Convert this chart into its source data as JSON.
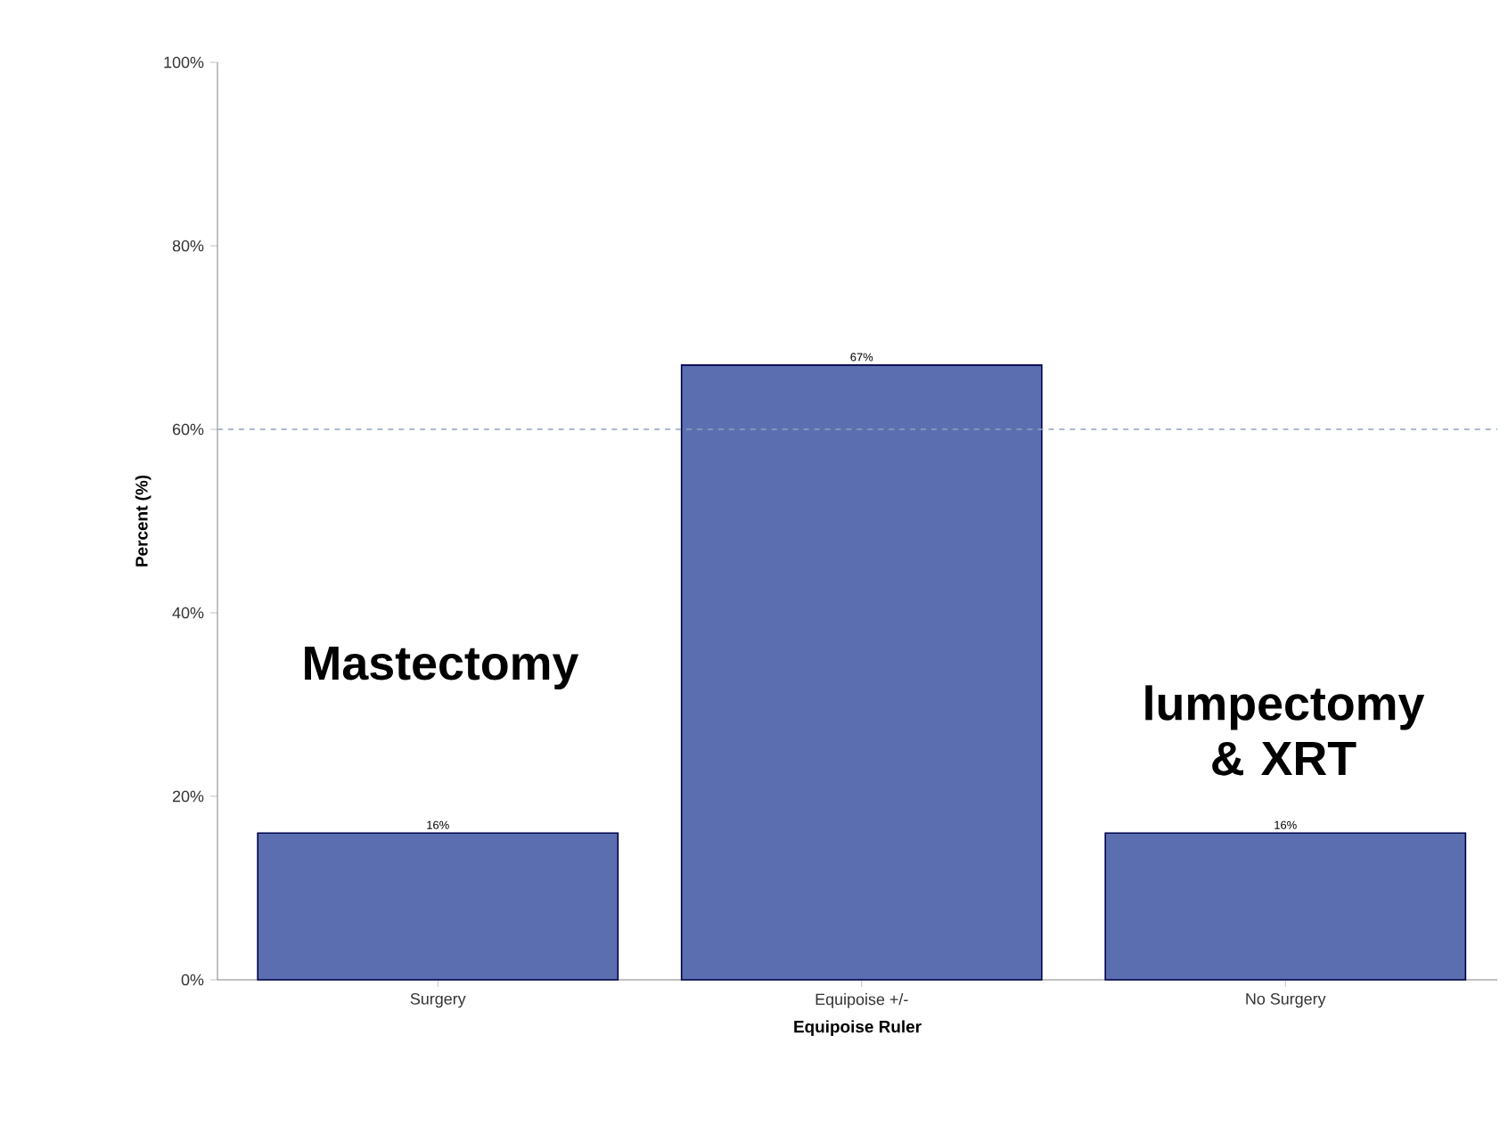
{
  "chart_data": {
    "type": "bar",
    "xlabel": "Equipoise Ruler",
    "ylabel": "Percent (%)",
    "categories": [
      "Surgery",
      "Equipoise +/-",
      "No Surgery"
    ],
    "values": [
      16,
      67,
      16
    ],
    "value_labels": [
      "16%",
      "67%",
      "16%"
    ],
    "color": "#5b6fb0",
    "ylim": [
      0,
      100
    ],
    "yticks": [
      {
        "value": 0,
        "label": "0%"
      },
      {
        "value": 20,
        "label": "20%"
      },
      {
        "value": 40,
        "label": "40%"
      },
      {
        "value": 60,
        "label": "60%"
      },
      {
        "value": 80,
        "label": "80%"
      },
      {
        "value": 100,
        "label": "100%"
      }
    ],
    "ref_lines": [
      {
        "axis": "y",
        "value": 60,
        "color": "#8fa3c0",
        "line_style": "dashed"
      }
    ],
    "annotations": [
      "Mastectomy",
      "lumpectomy & XRT"
    ],
    "grid": false
  }
}
